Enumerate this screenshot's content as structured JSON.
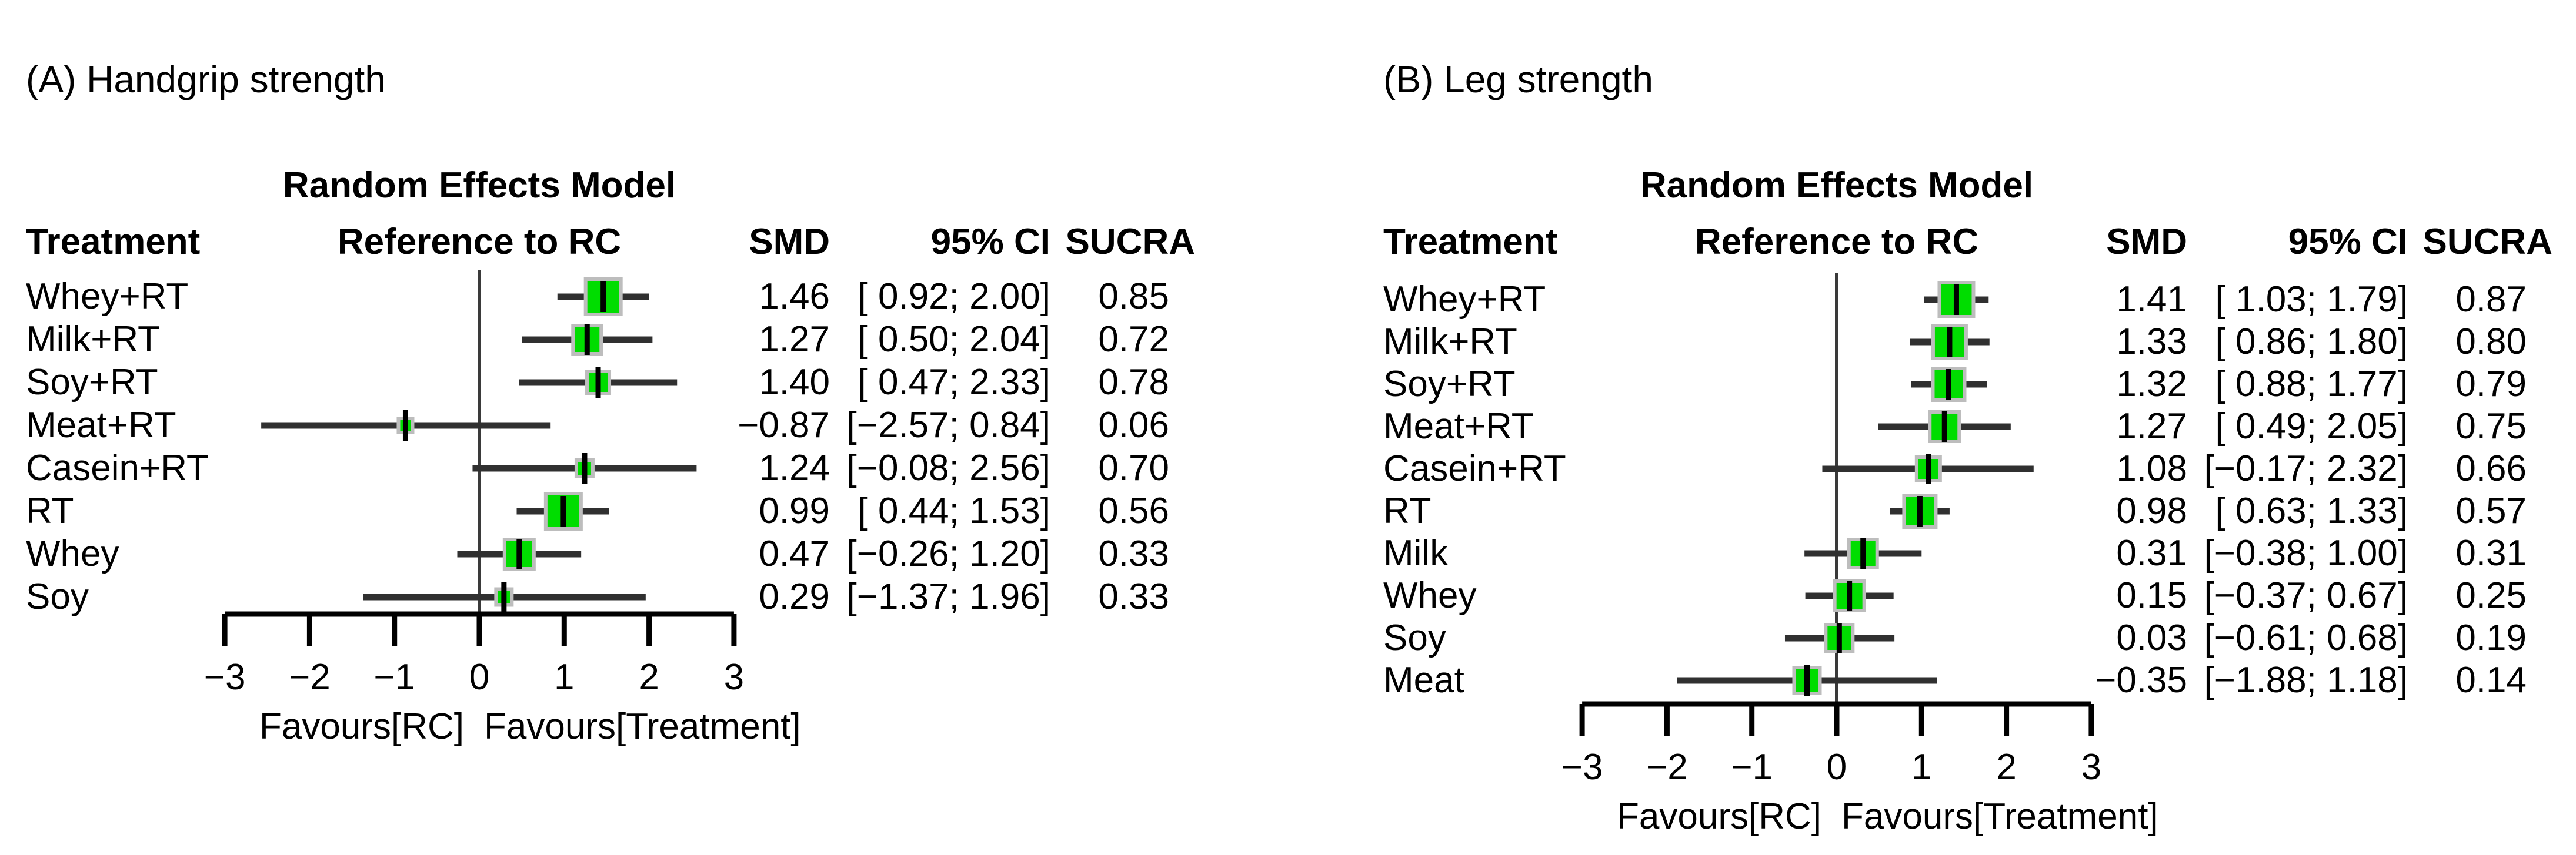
{
  "figure": {
    "background": "#ffffff",
    "description": "Two-panel forest plot of network meta-analysis results"
  },
  "chart_data": [
    {
      "type": "forest",
      "title": "(A) Handgrip strength",
      "columns": {
        "treatment": "Treatment",
        "model_line1": "Random Effects Model",
        "model_line2": "Reference to RC",
        "smd": "SMD",
        "ci": "95% CI",
        "sucra": "SUCRA"
      },
      "axis": {
        "xlim": [
          -3,
          3
        ],
        "ticks": [
          -3,
          -2,
          -1,
          0,
          1,
          2,
          3
        ],
        "tick_labels": [
          "−3",
          "−2",
          "−1",
          "0",
          "1",
          "2",
          "3"
        ],
        "favours_left": "Favours[RC]",
        "favours_right": "Favours[Treatment]",
        "reference_value": 0
      },
      "style": {
        "marker_fill": "#00dd00",
        "marker_border": "#bdbdbd",
        "ci_color": "#303030",
        "zero_line_color": "#3a3a3a",
        "axis_color": "#000000"
      },
      "rows": [
        {
          "treatment": "Whey+RT",
          "smd": 1.46,
          "ci_low": 0.92,
          "ci_high": 2.0,
          "smd_text": "1.46",
          "ci_text": "[ 0.92; 2.00]",
          "sucra_text": "0.85",
          "marker_px": 60
        },
        {
          "treatment": "Milk+RT",
          "smd": 1.27,
          "ci_low": 0.5,
          "ci_high": 2.04,
          "smd_text": "1.27",
          "ci_text": "[ 0.50; 2.04]",
          "sucra_text": "0.72",
          "marker_px": 48
        },
        {
          "treatment": "Soy+RT",
          "smd": 1.4,
          "ci_low": 0.47,
          "ci_high": 2.33,
          "smd_text": "1.40",
          "ci_text": "[ 0.47; 2.33]",
          "sucra_text": "0.78",
          "marker_px": 38
        },
        {
          "treatment": "Meat+RT",
          "smd": -0.87,
          "ci_low": -2.57,
          "ci_high": 0.84,
          "smd_text": "−0.87",
          "ci_text": "[−2.57; 0.84]",
          "sucra_text": "0.06",
          "marker_px": 24
        },
        {
          "treatment": "Casein+RT",
          "smd": 1.24,
          "ci_low": -0.08,
          "ci_high": 2.56,
          "smd_text": "1.24",
          "ci_text": "[−0.08; 2.56]",
          "sucra_text": "0.70",
          "marker_px": 28
        },
        {
          "treatment": "RT",
          "smd": 0.99,
          "ci_low": 0.44,
          "ci_high": 1.53,
          "smd_text": "0.99",
          "ci_text": "[ 0.44; 1.53]",
          "sucra_text": "0.56",
          "marker_px": 60
        },
        {
          "treatment": "Whey",
          "smd": 0.47,
          "ci_low": -0.26,
          "ci_high": 1.2,
          "smd_text": "0.47",
          "ci_text": "[−0.26; 1.20]",
          "sucra_text": "0.33",
          "marker_px": 50
        },
        {
          "treatment": "Soy",
          "smd": 0.29,
          "ci_low": -1.37,
          "ci_high": 1.96,
          "smd_text": "0.29",
          "ci_text": "[−1.37; 1.96]",
          "sucra_text": "0.33",
          "marker_px": 27
        }
      ]
    },
    {
      "type": "forest",
      "title": "(B) Leg strength",
      "columns": {
        "treatment": "Treatment",
        "model_line1": "Random Effects Model",
        "model_line2": "Reference to RC",
        "smd": "SMD",
        "ci": "95% CI",
        "sucra": "SUCRA"
      },
      "axis": {
        "xlim": [
          -3,
          3
        ],
        "ticks": [
          -3,
          -2,
          -1,
          0,
          1,
          2,
          3
        ],
        "tick_labels": [
          "−3",
          "−2",
          "−1",
          "0",
          "1",
          "2",
          "3"
        ],
        "favours_left": "Favours[RC]",
        "favours_right": "Favours[Treatment]",
        "reference_value": 0
      },
      "style": {
        "marker_fill": "#00dd00",
        "marker_border": "#bdbdbd",
        "ci_color": "#303030",
        "zero_line_color": "#3a3a3a",
        "axis_color": "#000000"
      },
      "rows": [
        {
          "treatment": "Whey+RT",
          "smd": 1.41,
          "ci_low": 1.03,
          "ci_high": 1.79,
          "smd_text": "1.41",
          "ci_text": "[ 1.03; 1.79]",
          "sucra_text": "0.87",
          "marker_px": 58
        },
        {
          "treatment": "Milk+RT",
          "smd": 1.33,
          "ci_low": 0.86,
          "ci_high": 1.8,
          "smd_text": "1.33",
          "ci_text": "[ 0.86; 1.80]",
          "sucra_text": "0.80",
          "marker_px": 56
        },
        {
          "treatment": "Soy+RT",
          "smd": 1.32,
          "ci_low": 0.88,
          "ci_high": 1.77,
          "smd_text": "1.32",
          "ci_text": "[ 0.88; 1.77]",
          "sucra_text": "0.79",
          "marker_px": 54
        },
        {
          "treatment": "Meat+RT",
          "smd": 1.27,
          "ci_low": 0.49,
          "ci_high": 2.05,
          "smd_text": "1.27",
          "ci_text": "[ 0.49; 2.05]",
          "sucra_text": "0.75",
          "marker_px": 50
        },
        {
          "treatment": "Casein+RT",
          "smd": 1.08,
          "ci_low": -0.17,
          "ci_high": 2.32,
          "smd_text": "1.08",
          "ci_text": "[−0.17; 2.32]",
          "sucra_text": "0.66",
          "marker_px": 40
        },
        {
          "treatment": "RT",
          "smd": 0.98,
          "ci_low": 0.63,
          "ci_high": 1.33,
          "smd_text": "0.98",
          "ci_text": "[ 0.63; 1.33]",
          "sucra_text": "0.57",
          "marker_px": 54
        },
        {
          "treatment": "Milk",
          "smd": 0.31,
          "ci_low": -0.38,
          "ci_high": 1.0,
          "smd_text": "0.31",
          "ci_text": "[−0.38; 1.00]",
          "sucra_text": "0.31",
          "marker_px": 48
        },
        {
          "treatment": "Whey",
          "smd": 0.15,
          "ci_low": -0.37,
          "ci_high": 0.67,
          "smd_text": "0.15",
          "ci_text": "[−0.37; 0.67]",
          "sucra_text": "0.25",
          "marker_px": 50
        },
        {
          "treatment": "Soy",
          "smd": 0.03,
          "ci_low": -0.61,
          "ci_high": 0.68,
          "smd_text": "0.03",
          "ci_text": "[−0.61; 0.68]",
          "sucra_text": "0.19",
          "marker_px": 46
        },
        {
          "treatment": "Meat",
          "smd": -0.35,
          "ci_low": -1.88,
          "ci_high": 1.18,
          "smd_text": "−0.35",
          "ci_text": "[−1.88; 1.18]",
          "sucra_text": "0.14",
          "marker_px": 44
        }
      ]
    }
  ]
}
